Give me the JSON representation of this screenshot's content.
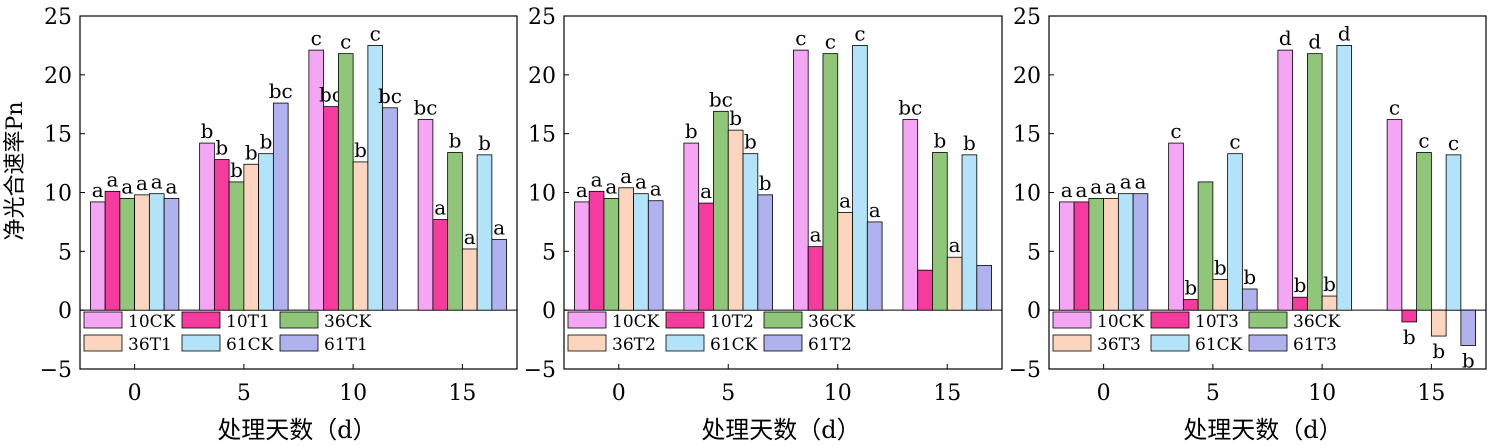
{
  "figure": {
    "ylabel": "净光合速率Pn"
  },
  "chart_data": [
    {
      "type": "bar",
      "xlabel": "处理天数（d）",
      "ylabel": "净光合速率Pn",
      "ylim": [
        -5,
        25
      ],
      "yticks": [
        -5,
        0,
        5,
        10,
        15,
        20,
        25
      ],
      "categories": [
        "0",
        "5",
        "10",
        "15"
      ],
      "grid": false,
      "legend_position": "bottom-left",
      "series": [
        {
          "name": "10CK",
          "color": "#f4a6f4",
          "values": [
            9.2,
            14.2,
            22.1,
            16.2
          ],
          "labels": [
            "a",
            "b",
            "c",
            "bc"
          ]
        },
        {
          "name": "10T1",
          "color": "#f53c9e",
          "values": [
            10.1,
            12.8,
            17.3,
            7.7
          ],
          "labels": [
            "a",
            "b",
            "bc",
            "a"
          ]
        },
        {
          "name": "36CK",
          "color": "#90c67a",
          "values": [
            9.5,
            10.9,
            21.8,
            13.4
          ],
          "labels": [
            "a",
            "b",
            "c",
            "b"
          ]
        },
        {
          "name": "36T1",
          "color": "#fcd5bf",
          "values": [
            9.8,
            12.4,
            12.6,
            5.2
          ],
          "labels": [
            "a",
            "b",
            "b",
            "a"
          ]
        },
        {
          "name": "61CK",
          "color": "#b3e3f8",
          "values": [
            9.9,
            13.3,
            22.5,
            13.2
          ],
          "labels": [
            "a",
            "b",
            "c",
            "b"
          ]
        },
        {
          "name": "61T1",
          "color": "#afb2ec",
          "values": [
            9.5,
            17.6,
            17.2,
            6.0
          ],
          "labels": [
            "a",
            "bc",
            "bc",
            "a"
          ]
        }
      ]
    },
    {
      "type": "bar",
      "xlabel": "处理天数（d）",
      "ylabel": "",
      "ylim": [
        -5,
        25
      ],
      "yticks": [
        -5,
        0,
        5,
        10,
        15,
        20,
        25
      ],
      "categories": [
        "0",
        "5",
        "10",
        "15"
      ],
      "grid": false,
      "legend_position": "bottom-left",
      "series": [
        {
          "name": "10CK",
          "color": "#f4a6f4",
          "values": [
            9.2,
            14.2,
            22.1,
            16.2
          ],
          "labels": [
            "a",
            "b",
            "c",
            "bc"
          ]
        },
        {
          "name": "10T2",
          "color": "#f53c9e",
          "values": [
            10.1,
            9.1,
            5.4,
            3.4
          ],
          "labels": [
            "a",
            "a",
            "a",
            ""
          ]
        },
        {
          "name": "36CK",
          "color": "#90c67a",
          "values": [
            9.5,
            16.9,
            21.8,
            13.4
          ],
          "labels": [
            "a",
            "bc",
            "c",
            "b"
          ]
        },
        {
          "name": "36T2",
          "color": "#fcd5bf",
          "values": [
            10.4,
            15.3,
            8.3,
            4.5
          ],
          "labels": [
            "a",
            "b",
            "a",
            "a"
          ]
        },
        {
          "name": "61CK",
          "color": "#b3e3f8",
          "values": [
            9.9,
            13.3,
            22.5,
            13.2
          ],
          "labels": [
            "a",
            "b",
            "c",
            "b"
          ]
        },
        {
          "name": "61T2",
          "color": "#afb2ec",
          "values": [
            9.3,
            9.8,
            7.5,
            3.8
          ],
          "labels": [
            "a",
            "b",
            "a",
            ""
          ]
        }
      ]
    },
    {
      "type": "bar",
      "xlabel": "处理天数（d）",
      "ylabel": "",
      "ylim": [
        -5,
        25
      ],
      "yticks": [
        -5,
        0,
        5,
        10,
        15,
        20,
        25
      ],
      "categories": [
        "0",
        "5",
        "10",
        "15"
      ],
      "grid": false,
      "legend_position": "bottom-left",
      "series": [
        {
          "name": "10CK",
          "color": "#f4a6f4",
          "values": [
            9.2,
            14.2,
            22.1,
            16.2
          ],
          "labels": [
            "a",
            "c",
            "d",
            "c"
          ]
        },
        {
          "name": "10T3",
          "color": "#f53c9e",
          "values": [
            9.2,
            0.9,
            1.1,
            -1.0
          ],
          "labels": [
            "a",
            "b",
            "b",
            "b"
          ]
        },
        {
          "name": "36CK",
          "color": "#90c67a",
          "values": [
            9.5,
            10.9,
            21.8,
            13.4
          ],
          "labels": [
            "a",
            "",
            "d",
            "c"
          ]
        },
        {
          "name": "36T3",
          "color": "#fcd5bf",
          "values": [
            9.5,
            2.6,
            1.2,
            -2.2
          ],
          "labels": [
            "a",
            "b",
            "b",
            "b"
          ]
        },
        {
          "name": "61CK",
          "color": "#b3e3f8",
          "values": [
            9.9,
            13.3,
            22.5,
            13.2
          ],
          "labels": [
            "a",
            "c",
            "d",
            "c"
          ]
        },
        {
          "name": "61T3",
          "color": "#afb2ec",
          "values": [
            9.9,
            1.8,
            null,
            -3.0
          ],
          "labels": [
            "a",
            "b",
            "",
            "b"
          ]
        }
      ]
    }
  ]
}
